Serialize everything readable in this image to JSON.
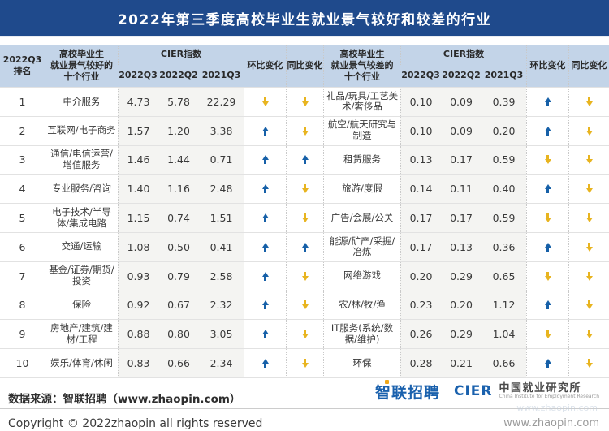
{
  "title": "2022年第三季度高校毕业生就业景气较好和较差的行业",
  "colors": {
    "title_bar": "#1f4a8c",
    "header_bg": "#c3d4e8",
    "value_col_bg": "#f4f4f2",
    "up_arrow": "#1660a8",
    "down_arrow": "#e8b41f"
  },
  "chart_data": {
    "type": "table",
    "title": "2022年第三季度高校毕业生就业景气较好和较差的行业",
    "headers": {
      "rank": "2022Q3\n排名",
      "good_industries": "高校毕业生\n就业景气较好的\n十个行业",
      "bad_industries": "高校毕业生\n就业景气较差的\n十个行业",
      "cier_index": "CIER指数",
      "periods": [
        "2022Q3",
        "2022Q2",
        "2021Q3"
      ],
      "qoq": "环比变化",
      "yoy": "同比变化"
    },
    "rows": [
      {
        "rank": "1",
        "good": {
          "name": "中介服务",
          "values": [
            "4.73",
            "5.78",
            "22.29"
          ],
          "qoq": "down",
          "yoy": "down"
        },
        "bad": {
          "name": "礼品/玩具/工艺美术/奢侈品",
          "values": [
            "0.10",
            "0.09",
            "0.39"
          ],
          "qoq": "up",
          "yoy": "down"
        }
      },
      {
        "rank": "2",
        "good": {
          "name": "互联网/电子商务",
          "values": [
            "1.57",
            "1.20",
            "3.38"
          ],
          "qoq": "up",
          "yoy": "down"
        },
        "bad": {
          "name": "航空/航天研究与制造",
          "values": [
            "0.10",
            "0.09",
            "0.20"
          ],
          "qoq": "up",
          "yoy": "down"
        }
      },
      {
        "rank": "3",
        "good": {
          "name": "通信/电信运营/增值服务",
          "values": [
            "1.46",
            "1.44",
            "0.71"
          ],
          "qoq": "up",
          "yoy": "up"
        },
        "bad": {
          "name": "租赁服务",
          "values": [
            "0.13",
            "0.17",
            "0.59"
          ],
          "qoq": "down",
          "yoy": "down"
        }
      },
      {
        "rank": "4",
        "good": {
          "name": "专业服务/咨询",
          "values": [
            "1.40",
            "1.16",
            "2.48"
          ],
          "qoq": "up",
          "yoy": "down"
        },
        "bad": {
          "name": "旅游/度假",
          "values": [
            "0.14",
            "0.11",
            "0.40"
          ],
          "qoq": "up",
          "yoy": "down"
        }
      },
      {
        "rank": "5",
        "good": {
          "name": "电子技术/半导体/集成电路",
          "values": [
            "1.15",
            "0.74",
            "1.51"
          ],
          "qoq": "up",
          "yoy": "down"
        },
        "bad": {
          "name": "广告/会展/公关",
          "values": [
            "0.17",
            "0.17",
            "0.59"
          ],
          "qoq": "down",
          "yoy": "down"
        }
      },
      {
        "rank": "6",
        "good": {
          "name": "交通/运输",
          "values": [
            "1.08",
            "0.50",
            "0.41"
          ],
          "qoq": "up",
          "yoy": "up"
        },
        "bad": {
          "name": "能源/矿产/采掘/冶炼",
          "values": [
            "0.17",
            "0.13",
            "0.36"
          ],
          "qoq": "up",
          "yoy": "down"
        }
      },
      {
        "rank": "7",
        "good": {
          "name": "基金/证券/期货/投资",
          "values": [
            "0.93",
            "0.79",
            "2.58"
          ],
          "qoq": "up",
          "yoy": "down"
        },
        "bad": {
          "name": "网络游戏",
          "values": [
            "0.20",
            "0.29",
            "0.65"
          ],
          "qoq": "down",
          "yoy": "down"
        }
      },
      {
        "rank": "8",
        "good": {
          "name": "保险",
          "values": [
            "0.92",
            "0.67",
            "2.32"
          ],
          "qoq": "up",
          "yoy": "down"
        },
        "bad": {
          "name": "农/林/牧/渔",
          "values": [
            "0.23",
            "0.20",
            "1.12"
          ],
          "qoq": "up",
          "yoy": "down"
        }
      },
      {
        "rank": "9",
        "good": {
          "name": "房地产/建筑/建材/工程",
          "values": [
            "0.88",
            "0.80",
            "3.05"
          ],
          "qoq": "up",
          "yoy": "down"
        },
        "bad": {
          "name": "IT服务(系统/数据/维护)",
          "values": [
            "0.26",
            "0.29",
            "1.04"
          ],
          "qoq": "down",
          "yoy": "down"
        }
      },
      {
        "rank": "10",
        "good": {
          "name": "娱乐/体育/休闲",
          "values": [
            "0.83",
            "0.66",
            "2.34"
          ],
          "qoq": "up",
          "yoy": "down"
        },
        "bad": {
          "name": "环保",
          "values": [
            "0.28",
            "0.21",
            "0.66"
          ],
          "qoq": "up",
          "yoy": "down"
        }
      }
    ]
  },
  "footer": {
    "source": "数据来源：智联招聘（www.zhaopin.com）",
    "copyright": "Copyright ©  2022zhaopin all rights reserved",
    "site": "www.zhaopin.com",
    "watermark": "www.zhaopin.com",
    "logo_zhaopin": "智联招聘",
    "logo_cier": "CIER",
    "logo_institute": "中国就业研究所",
    "logo_institute_en": "China Institute for Employment Research"
  }
}
